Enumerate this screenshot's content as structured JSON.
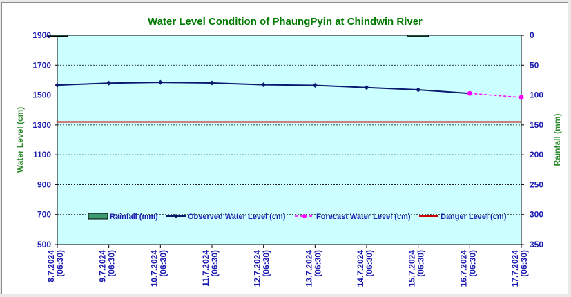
{
  "chart_data": {
    "type": "line",
    "title": "Water Level Condition of PhaungPyin at Chindwin River",
    "ylabel": "Water Level (cm)",
    "y2label": "Rainfall (mm)",
    "categories": [
      "8.7.2024\n(06:30)",
      "9.7.2024\n(06:30)",
      "10.7.2024\n(06:30)",
      "11.7.2024\n(06:30)",
      "12.7.2024\n(06:30)",
      "13.7.2024\n(06:30)",
      "14.7.2024\n(06:30)",
      "15.7.2024\n(06:30)",
      "16.7.2024\n(06:30)",
      "17.7.2024\n(06:30)"
    ],
    "ylim": [
      500,
      1900
    ],
    "yticks": [
      500,
      700,
      900,
      1100,
      1300,
      1500,
      1700,
      1900
    ],
    "y2lim": [
      350,
      0
    ],
    "y2ticks": [
      0,
      50,
      100,
      150,
      200,
      250,
      300,
      350
    ],
    "grid": true,
    "legend_position": "bottom-inside",
    "series": [
      {
        "name": "Rainfall (mm)",
        "kind": "bar",
        "axis": "right",
        "color": "#3d9970",
        "values": [
          0,
          null,
          null,
          null,
          null,
          null,
          null,
          2,
          null,
          null
        ]
      },
      {
        "name": "Observed Water Level (cm)",
        "kind": "line",
        "axis": "left",
        "color": "#0a1a6e",
        "marker": "diamond",
        "values": [
          1567,
          1580,
          1585,
          1581,
          1569,
          1565,
          1550,
          1535,
          1511,
          null
        ]
      },
      {
        "name": "Forecast Water Level (cm)",
        "kind": "dashed",
        "axis": "left",
        "color": "#ff00ff",
        "marker": "circle",
        "values": [
          null,
          null,
          null,
          null,
          null,
          null,
          null,
          null,
          1511,
          1484
        ]
      },
      {
        "name": "Danger Level (cm)",
        "kind": "line",
        "axis": "left",
        "color": "#cc0000",
        "values": [
          1320,
          1320,
          1320,
          1320,
          1320,
          1320,
          1320,
          1320,
          1320,
          1320
        ]
      }
    ],
    "colors": {
      "title": "#007a00",
      "axis_text": "#1a1ab0",
      "axis_title": "#2e8b2e",
      "plot_bg": "#ccffff"
    }
  }
}
